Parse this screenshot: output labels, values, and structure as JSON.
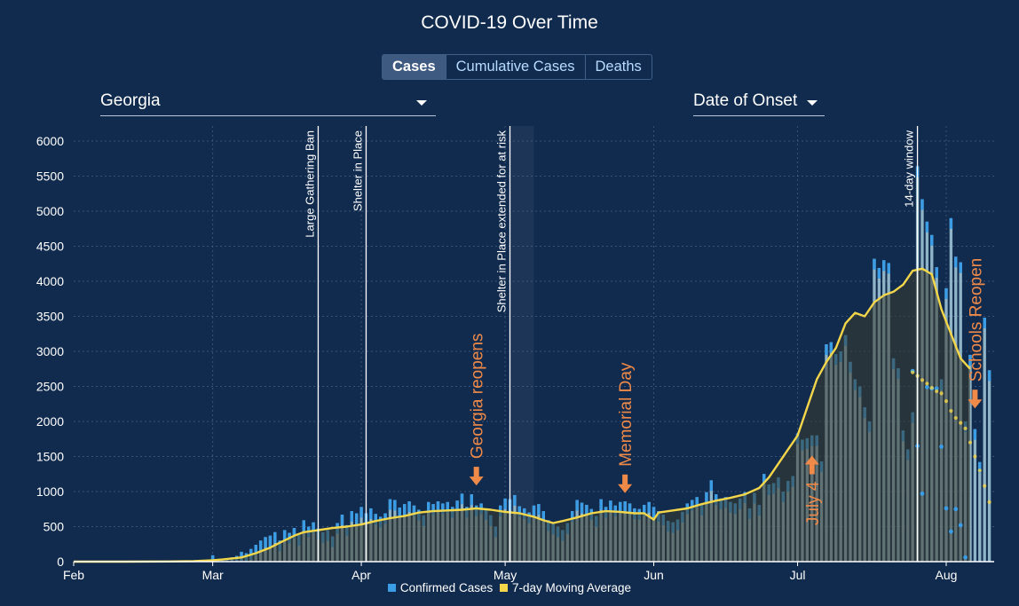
{
  "title": "COVID-19 Over Time",
  "tabs": [
    {
      "label": "Cases",
      "active": true
    },
    {
      "label": "Cumulative Cases",
      "active": false
    },
    {
      "label": "Deaths",
      "active": false
    }
  ],
  "location_select": {
    "value": "Georgia"
  },
  "date_select": {
    "value": "Date of Onset"
  },
  "legend": {
    "cases_label": "Confirmed Cases",
    "avg_label": "7-day Moving Average"
  },
  "colors": {
    "background": "#112b4e",
    "bar_recent": "#3a9de6",
    "bar_cap": "#3a9de6",
    "bar_body": "#8fb4c7",
    "moving_average": "#f3d64a",
    "annotation": "#f08a48",
    "event_line": "#ffffff",
    "grid": "#5b7396"
  },
  "chart_data": {
    "type": "bar",
    "title": "COVID-19 Over Time",
    "xlabel": "",
    "ylabel": "",
    "ylim": [
      0,
      6000
    ],
    "yticks": [
      0,
      500,
      1000,
      1500,
      2000,
      2500,
      3000,
      3500,
      4000,
      4500,
      5000,
      5500,
      6000
    ],
    "xlim_days": [
      0,
      192
    ],
    "x_tick_labels": [
      {
        "label": "Feb",
        "day": 0
      },
      {
        "label": "Mar",
        "day": 29
      },
      {
        "label": "Apr",
        "day": 60
      },
      {
        "label": "May",
        "day": 90
      },
      {
        "label": "Jun",
        "day": 121
      },
      {
        "label": "Jul",
        "day": 151
      },
      {
        "label": "Aug",
        "day": 182
      }
    ],
    "grid": true,
    "series": [
      {
        "name": "Confirmed Cases",
        "start_day": 29,
        "values": [
          90,
          20,
          30,
          40,
          60,
          80,
          140,
          120,
          180,
          240,
          300,
          350,
          370,
          420,
          300,
          450,
          410,
          480,
          380,
          590,
          500,
          560,
          470,
          420,
          450,
          360,
          550,
          670,
          520,
          720,
          690,
          780,
          690,
          760,
          680,
          640,
          690,
          890,
          880,
          770,
          820,
          860,
          800,
          740,
          660,
          850,
          820,
          860,
          830,
          850,
          780,
          870,
          970,
          780,
          960,
          800,
          830,
          750,
          660,
          500,
          800,
          900,
          890,
          950,
          790,
          760,
          700,
          800,
          820,
          720,
          590,
          540,
          500,
          450,
          550,
          720,
          880,
          840,
          810,
          750,
          650,
          890,
          780,
          870,
          800,
          850,
          860,
          830,
          760,
          750,
          810,
          850,
          780,
          720,
          670,
          580,
          560,
          600,
          710,
          830,
          880,
          920,
          810,
          990,
          1160,
          960,
          900,
          920,
          850,
          830,
          900,
          990,
          760,
          980,
          810,
          1250,
          1100,
          1120,
          1200,
          1000,
          1150,
          1220,
          1830,
          1740,
          1760,
          1800,
          1800,
          1430,
          3100,
          3130,
          2960,
          3000,
          3230,
          2850,
          2600,
          2500,
          2200,
          2000,
          4320,
          4190,
          4300,
          4260,
          2900,
          2760,
          1870,
          1600,
          2130,
          5640,
          5170,
          4850,
          4660,
          4200,
          2600,
          3900,
          4900,
          4350,
          4270,
          2000,
          2950,
          1890,
          1420,
          3480,
          2730
        ],
        "recent_window": [
          {
            "day": 175,
            "value": 2720
          },
          {
            "day": 176,
            "value": 1650
          },
          {
            "day": 177,
            "value": 970
          },
          {
            "day": 178,
            "value": 2490
          },
          {
            "day": 179,
            "value": 2470
          },
          {
            "day": 180,
            "value": 2470
          },
          {
            "day": 181,
            "value": 1640
          },
          {
            "day": 182,
            "value": 760
          },
          {
            "day": 183,
            "value": 430
          },
          {
            "day": 184,
            "value": 750
          },
          {
            "day": 185,
            "value": 520
          },
          {
            "day": 186,
            "value": 60
          }
        ]
      },
      {
        "name": "7-day Moving Average",
        "points": [
          [
            0,
            0
          ],
          [
            10,
            0
          ],
          [
            20,
            2
          ],
          [
            25,
            8
          ],
          [
            29,
            20
          ],
          [
            31,
            30
          ],
          [
            35,
            60
          ],
          [
            38,
            120
          ],
          [
            41,
            200
          ],
          [
            43,
            270
          ],
          [
            46,
            370
          ],
          [
            48,
            420
          ],
          [
            51,
            450
          ],
          [
            54,
            480
          ],
          [
            57,
            500
          ],
          [
            60,
            530
          ],
          [
            63,
            580
          ],
          [
            66,
            620
          ],
          [
            69,
            650
          ],
          [
            72,
            700
          ],
          [
            75,
            720
          ],
          [
            78,
            730
          ],
          [
            81,
            740
          ],
          [
            84,
            760
          ],
          [
            87,
            740
          ],
          [
            90,
            710
          ],
          [
            93,
            690
          ],
          [
            96,
            640
          ],
          [
            98,
            590
          ],
          [
            100,
            550
          ],
          [
            102,
            580
          ],
          [
            105,
            630
          ],
          [
            108,
            690
          ],
          [
            111,
            720
          ],
          [
            114,
            710
          ],
          [
            117,
            690
          ],
          [
            119,
            690
          ],
          [
            121,
            600
          ],
          [
            122,
            700
          ],
          [
            125,
            730
          ],
          [
            128,
            760
          ],
          [
            131,
            820
          ],
          [
            134,
            870
          ],
          [
            137,
            910
          ],
          [
            140,
            960
          ],
          [
            143,
            1050
          ],
          [
            145,
            1200
          ],
          [
            147,
            1400
          ],
          [
            149,
            1600
          ],
          [
            151,
            1800
          ],
          [
            153,
            2200
          ],
          [
            155,
            2600
          ],
          [
            157,
            2850
          ],
          [
            159,
            3050
          ],
          [
            161,
            3400
          ],
          [
            163,
            3550
          ],
          [
            165,
            3500
          ],
          [
            167,
            3700
          ],
          [
            169,
            3800
          ],
          [
            171,
            3850
          ],
          [
            173,
            3950
          ],
          [
            175,
            4150
          ],
          [
            177,
            4180
          ],
          [
            179,
            4100
          ],
          [
            181,
            3600
          ],
          [
            183,
            3250
          ],
          [
            185,
            2900
          ],
          [
            187,
            2750
          ]
        ],
        "projection_points": [
          [
            175,
            2700
          ],
          [
            176,
            2650
          ],
          [
            177,
            2590
          ],
          [
            178,
            2540
          ],
          [
            179,
            2480
          ],
          [
            180,
            2430
          ],
          [
            181,
            2400
          ],
          [
            182,
            2290
          ],
          [
            183,
            2150
          ],
          [
            184,
            2050
          ],
          [
            185,
            1980
          ],
          [
            186,
            1900
          ],
          [
            187,
            1700
          ],
          [
            188,
            1500
          ],
          [
            189,
            1300
          ],
          [
            190,
            1080
          ],
          [
            191,
            850
          ]
        ]
      }
    ],
    "event_lines": [
      {
        "label": "Large Gathering Ban",
        "day": 51
      },
      {
        "label": "Shelter in Place",
        "day": 61
      },
      {
        "label": "Shelter in Place extended for at risk",
        "day": 91
      },
      {
        "label": "14-day window",
        "day": 176
      }
    ],
    "shaded_period_days": [
      91,
      96
    ],
    "annotations": [
      {
        "label": "Georgia reopens",
        "day": 84,
        "arrow": "down",
        "arrow_value": 1100
      },
      {
        "label": "Memorial Day",
        "day": 115,
        "arrow": "down",
        "arrow_value": 990
      },
      {
        "label": "July 4",
        "day": 154,
        "arrow": "up",
        "arrow_value": 1500
      },
      {
        "label": "Schools Reopen",
        "day": 188,
        "arrow": "down",
        "arrow_value": 2200
      }
    ]
  }
}
